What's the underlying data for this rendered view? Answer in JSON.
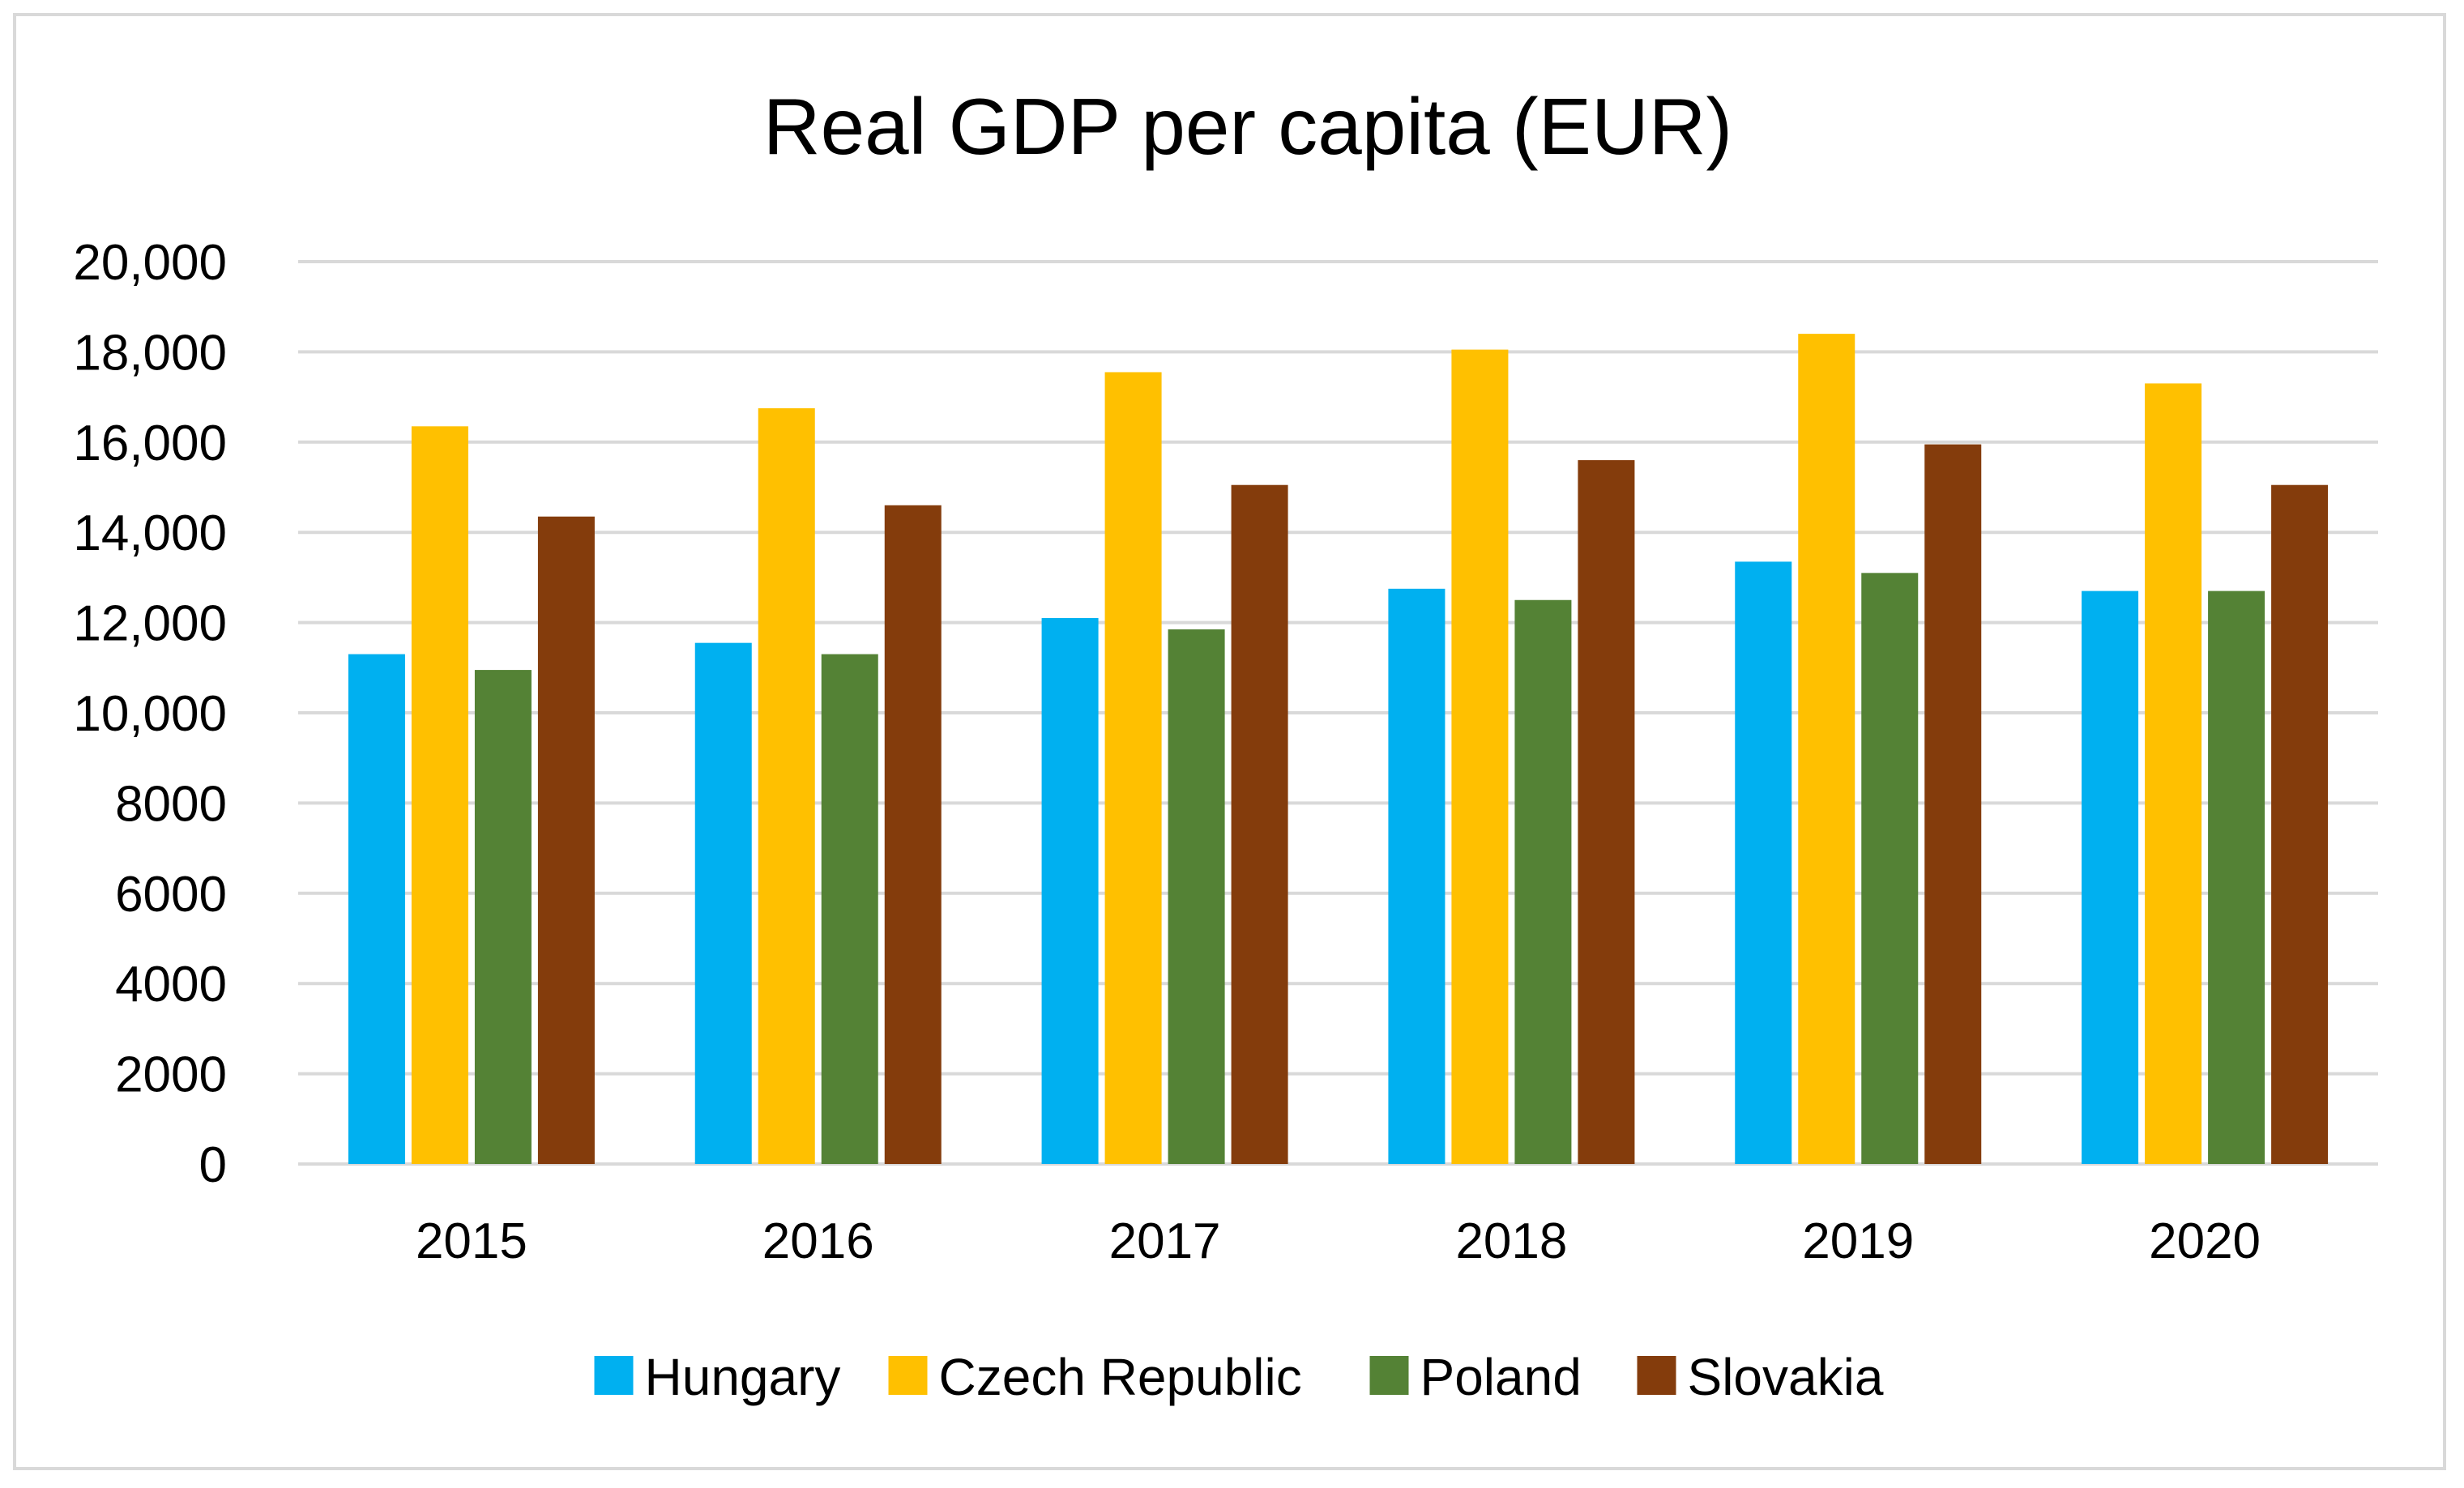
{
  "chart_data": {
    "type": "bar",
    "title": "Real GDP per capita (EUR)",
    "xlabel": "",
    "ylabel": "",
    "categories": [
      "2015",
      "2016",
      "2017",
      "2018",
      "2019",
      "2020"
    ],
    "ylim": [
      0,
      20000
    ],
    "yticks": [
      0,
      2000,
      4000,
      6000,
      8000,
      10000,
      12000,
      14000,
      16000,
      18000,
      20000
    ],
    "ytick_labels": [
      "0",
      "2000",
      "4000",
      "6000",
      "8000",
      "10,000",
      "12,000",
      "14,000",
      "16,000",
      "18,000",
      "20,000"
    ],
    "grid": true,
    "legend_position": "bottom",
    "series": [
      {
        "name": "Hungary",
        "color": "#00b0f0",
        "values": [
          11300,
          11550,
          12100,
          12750,
          13350,
          12700
        ]
      },
      {
        "name": "Czech Republic",
        "color": "#ffc000",
        "values": [
          16350,
          16750,
          17550,
          18050,
          18400,
          17300
        ]
      },
      {
        "name": "Poland",
        "color": "#548235",
        "values": [
          10950,
          11300,
          11850,
          12500,
          13100,
          12700
        ]
      },
      {
        "name": "Slovakia",
        "color": "#843c0c",
        "values": [
          14350,
          14600,
          15050,
          15600,
          15950,
          15050
        ]
      }
    ]
  }
}
